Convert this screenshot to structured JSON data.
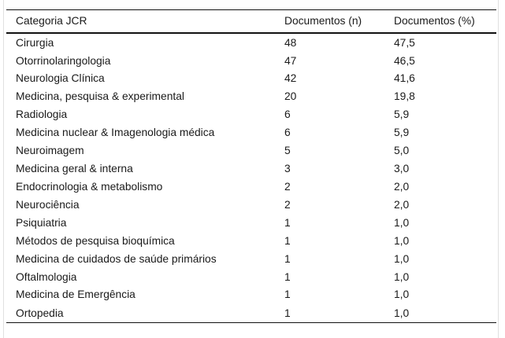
{
  "chart_data": {
    "type": "table",
    "columns": [
      "Categoria JCR",
      "Documentos (n)",
      "Documentos (%)"
    ],
    "rows": [
      [
        "Cirurgia",
        "48",
        "47,5"
      ],
      [
        "Otorrinolaringologia",
        "47",
        "46,5"
      ],
      [
        "Neurologia Clínica",
        "42",
        "41,6"
      ],
      [
        "Medicina, pesquisa & experimental",
        "20",
        "19,8"
      ],
      [
        "Radiologia",
        "6",
        "5,9"
      ],
      [
        "Medicina nuclear & Imagenologia médica",
        "6",
        "5,9"
      ],
      [
        "Neuroimagem",
        "5",
        "5,0"
      ],
      [
        "Medicina geral & interna",
        "3",
        "3,0"
      ],
      [
        "Endocrinologia & metabolismo",
        "2",
        "2,0"
      ],
      [
        "Neurociência",
        "2",
        "2,0"
      ],
      [
        "Psiquiatria",
        "1",
        "1,0"
      ],
      [
        "Métodos de pesquisa bioquímica",
        "1",
        "1,0"
      ],
      [
        "Medicina de cuidados de saúde primários",
        "1",
        "1,0"
      ],
      [
        "Oftalmologia",
        "1",
        "1,0"
      ],
      [
        "Medicina de Emergência",
        "1",
        "1,0"
      ],
      [
        "Ortopedia",
        "1",
        "1,0"
      ]
    ],
    "layout": {
      "grid": "horizontal-rules-only",
      "rules": [
        "top",
        "below-header",
        "bottom"
      ],
      "header_bold": false
    }
  },
  "colors": {
    "background": "#ffffff",
    "text": "#1a1a1a",
    "rule": "#111111",
    "page_edge_line": "#e0e0e0"
  }
}
